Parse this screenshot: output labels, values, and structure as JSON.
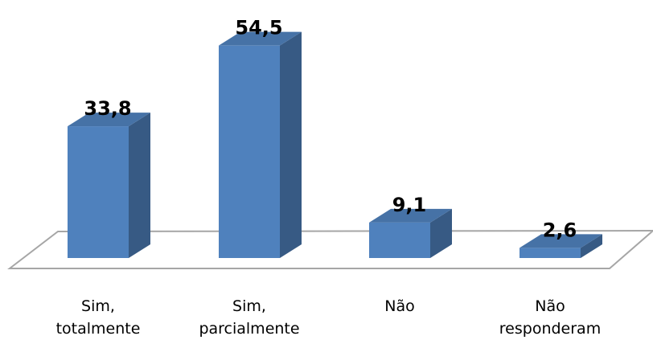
{
  "chart_data": {
    "type": "bar",
    "categories": [
      "Sim,\ntotalmente",
      "Sim,\nparcialmente",
      "Não",
      "Não\nresponderam"
    ],
    "values": [
      33.8,
      54.5,
      9.1,
      2.6
    ],
    "value_labels": [
      "33,8",
      "54,5",
      "9,1",
      "2,6"
    ],
    "color": "#4f81bd"
  }
}
